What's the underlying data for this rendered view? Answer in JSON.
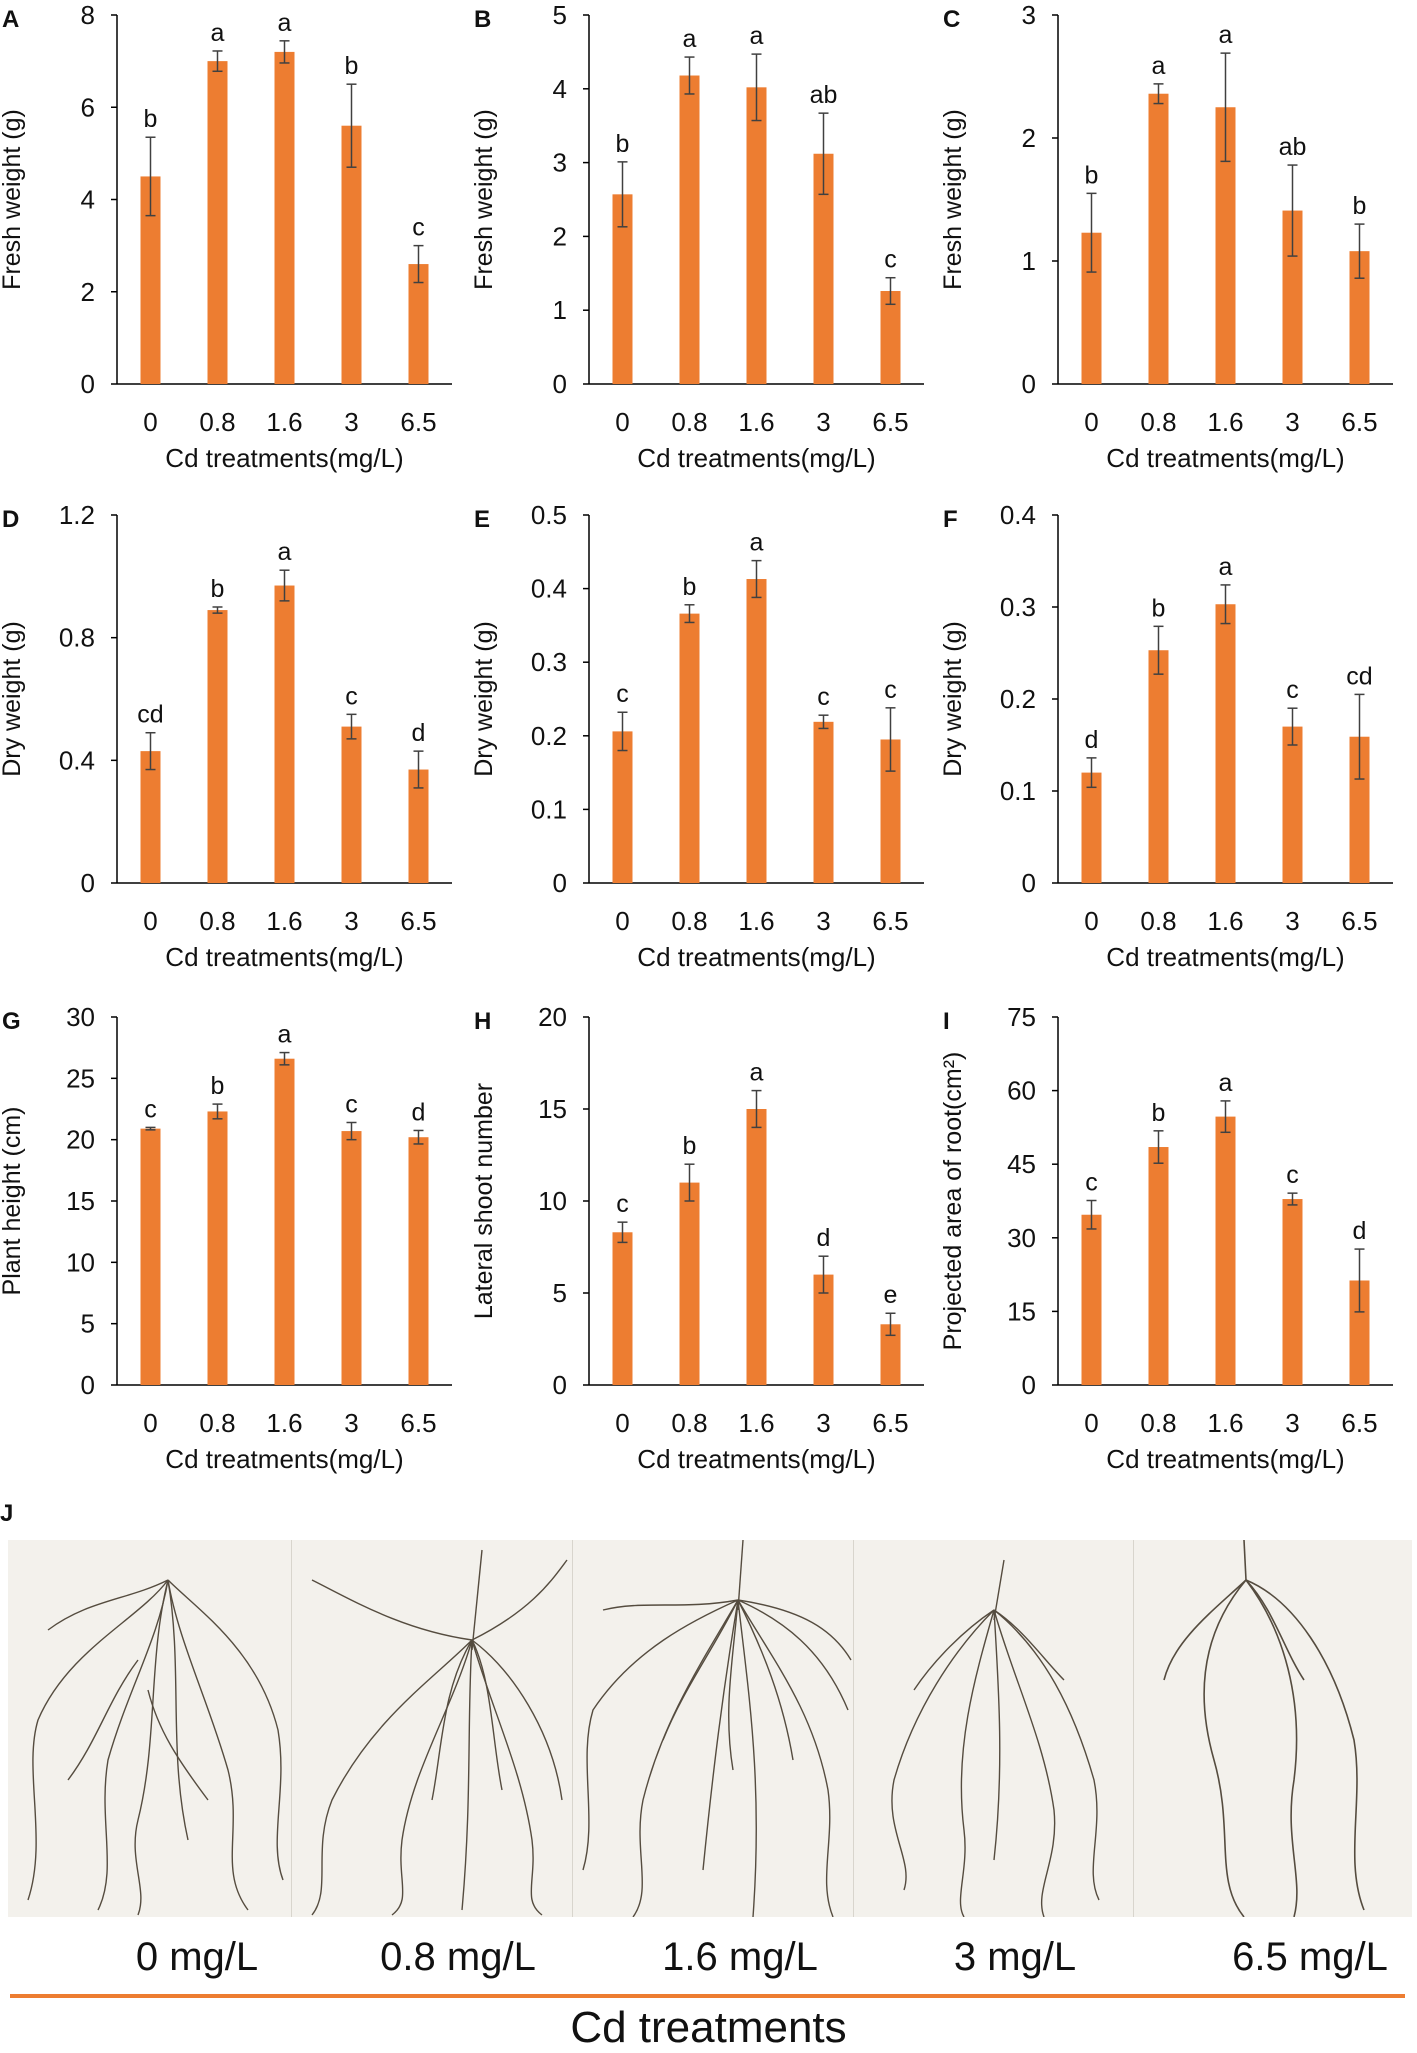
{
  "colors": {
    "bar": "#ED7D31",
    "axis": "#000000",
    "error": "#404040",
    "accent_line": "#ED7D31",
    "root": "#3a3022"
  },
  "chart_data": [
    {
      "panel": "A",
      "type": "bar",
      "categories": [
        "0",
        "0.8",
        "1.6",
        "3",
        "6.5"
      ],
      "values": [
        4.5,
        7.0,
        7.2,
        5.6,
        2.6
      ],
      "errors": [
        0.85,
        0.22,
        0.24,
        0.9,
        0.4
      ],
      "letters": [
        "b",
        "a",
        "a",
        "b",
        "c"
      ],
      "ylabel": "Fresh weight (g)",
      "xlabel": "Cd treatments(mg/L)",
      "ylim": [
        0,
        8
      ],
      "yticks": [
        0,
        2,
        4,
        6,
        8
      ],
      "tick_labels": [
        "0",
        "2",
        "4",
        "6",
        "8"
      ]
    },
    {
      "panel": "B",
      "type": "bar",
      "categories": [
        "0",
        "0.8",
        "1.6",
        "3",
        "6.5"
      ],
      "values": [
        2.57,
        4.18,
        4.02,
        3.12,
        1.26
      ],
      "errors": [
        0.44,
        0.25,
        0.45,
        0.55,
        0.18
      ],
      "letters": [
        "b",
        "a",
        "a",
        "ab",
        "c"
      ],
      "ylabel": "Fresh weight (g)",
      "xlabel": "Cd treatments(mg/L)",
      "ylim": [
        0,
        5
      ],
      "yticks": [
        0,
        1,
        2,
        3,
        4,
        5
      ],
      "tick_labels": [
        "0",
        "1",
        "2",
        "3",
        "4",
        "5"
      ]
    },
    {
      "panel": "C",
      "type": "bar",
      "categories": [
        "0",
        "0.8",
        "1.6",
        "3",
        "6.5"
      ],
      "values": [
        1.23,
        2.36,
        2.25,
        1.41,
        1.08
      ],
      "errors": [
        0.32,
        0.08,
        0.44,
        0.37,
        0.22
      ],
      "letters": [
        "b",
        "a",
        "a",
        "ab",
        "b"
      ],
      "ylabel": "Fresh weight (g)",
      "xlabel": "Cd treatments(mg/L)",
      "ylim": [
        0,
        3
      ],
      "yticks": [
        0,
        1,
        2,
        3
      ],
      "tick_labels": [
        "0",
        "1",
        "2",
        "3"
      ]
    },
    {
      "panel": "D",
      "type": "bar",
      "categories": [
        "0",
        "0.8",
        "1.6",
        "3",
        "6.5"
      ],
      "values": [
        0.43,
        0.89,
        0.97,
        0.51,
        0.37
      ],
      "errors": [
        0.06,
        0.01,
        0.05,
        0.04,
        0.06
      ],
      "letters": [
        "cd",
        "b",
        "a",
        "c",
        "d"
      ],
      "ylabel": "Dry weight (g)",
      "xlabel": "Cd treatments(mg/L)",
      "ylim": [
        0,
        1.2
      ],
      "yticks": [
        0,
        0.4,
        0.8,
        1.2
      ],
      "tick_labels": [
        "0",
        "0.4",
        "0.8",
        "1.2"
      ]
    },
    {
      "panel": "E",
      "type": "bar",
      "categories": [
        "0",
        "0.8",
        "1.6",
        "3",
        "6.5"
      ],
      "values": [
        0.206,
        0.366,
        0.413,
        0.219,
        0.195
      ],
      "errors": [
        0.026,
        0.012,
        0.025,
        0.009,
        0.043
      ],
      "letters": [
        "c",
        "b",
        "a",
        "c",
        "c"
      ],
      "ylabel": "Dry weight (g)",
      "xlabel": "Cd treatments(mg/L)",
      "ylim": [
        0,
        0.5
      ],
      "yticks": [
        0,
        0.1,
        0.2,
        0.3,
        0.4,
        0.5
      ],
      "tick_labels": [
        "0",
        "0.1",
        "0.2",
        "0.3",
        "0.4",
        "0.5"
      ]
    },
    {
      "panel": "F",
      "type": "bar",
      "categories": [
        "0",
        "0.8",
        "1.6",
        "3",
        "6.5"
      ],
      "values": [
        0.12,
        0.253,
        0.303,
        0.17,
        0.159
      ],
      "errors": [
        0.016,
        0.026,
        0.021,
        0.02,
        0.046
      ],
      "letters": [
        "d",
        "b",
        "a",
        "c",
        "cd"
      ],
      "ylabel": "Dry weight (g)",
      "xlabel": "Cd treatments(mg/L)",
      "ylim": [
        0,
        0.4
      ],
      "yticks": [
        0,
        0.1,
        0.2,
        0.3,
        0.4
      ],
      "tick_labels": [
        "0",
        "0.1",
        "0.2",
        "0.3",
        "0.4"
      ]
    },
    {
      "panel": "G",
      "type": "bar",
      "categories": [
        "0",
        "0.8",
        "1.6",
        "3",
        "6.5"
      ],
      "values": [
        20.9,
        22.3,
        26.6,
        20.7,
        20.2
      ],
      "errors": [
        0.1,
        0.6,
        0.5,
        0.7,
        0.55
      ],
      "letters": [
        "c",
        "b",
        "a",
        "c",
        "d"
      ],
      "ylabel": "Plant  height (cm)",
      "xlabel": "Cd treatments(mg/L)",
      "ylim": [
        0,
        30
      ],
      "yticks": [
        0,
        5,
        10,
        15,
        20,
        25,
        30
      ],
      "tick_labels": [
        "0",
        "5",
        "10",
        "15",
        "20",
        "25",
        "30"
      ]
    },
    {
      "panel": "H",
      "type": "bar",
      "categories": [
        "0",
        "0.8",
        "1.6",
        "3",
        "6.5"
      ],
      "values": [
        8.3,
        11.0,
        15.0,
        6.0,
        3.3
      ],
      "errors": [
        0.55,
        1.0,
        1.0,
        1.0,
        0.6
      ],
      "letters": [
        "c",
        "b",
        "a",
        "d",
        "e"
      ],
      "ylabel": "Lateral shoot number",
      "xlabel": "Cd treatments(mg/L)",
      "ylim": [
        0,
        20
      ],
      "yticks": [
        0,
        5,
        10,
        15,
        20
      ],
      "tick_labels": [
        "0",
        "5",
        "10",
        "15",
        "20"
      ]
    },
    {
      "panel": "I",
      "type": "bar",
      "categories": [
        "0",
        "0.8",
        "1.6",
        "3",
        "6.5"
      ],
      "values": [
        34.7,
        48.5,
        54.7,
        37.9,
        21.3
      ],
      "errors": [
        2.9,
        3.3,
        3.2,
        1.2,
        6.4
      ],
      "letters": [
        "c",
        "b",
        "a",
        "c",
        "d"
      ],
      "ylabel": "Projected area of root(cm²)",
      "xlabel": "Cd treatments(mg/L)",
      "ylim": [
        0,
        75
      ],
      "yticks": [
        0,
        15,
        30,
        45,
        60,
        75
      ],
      "tick_labels": [
        "0",
        "15",
        "30",
        "45",
        "60",
        "75"
      ]
    }
  ],
  "photo_panel": {
    "label": "J",
    "concentrations": [
      "0 mg/L",
      "0.8 mg/L",
      "1.6 mg/L",
      "3 mg/L",
      "6.5 mg/L"
    ],
    "title": "Cd treatments"
  }
}
